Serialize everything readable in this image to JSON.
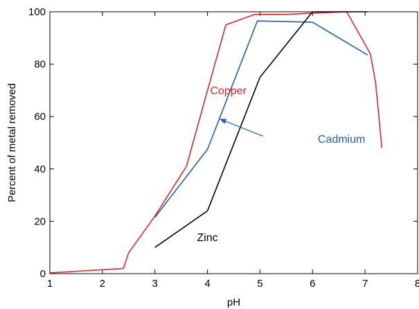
{
  "chart_data": {
    "type": "line",
    "xlabel": "pH",
    "ylabel": "Percent of metal removed",
    "xlim": [
      1,
      8
    ],
    "ylim": [
      0,
      100
    ],
    "xticks": [
      1,
      2,
      3,
      4,
      5,
      6,
      7,
      8
    ],
    "yticks": [
      0,
      20,
      40,
      60,
      80,
      100
    ],
    "grid": false,
    "legend": "none",
    "series": [
      {
        "name": "Copper",
        "color": "#e0262b",
        "points": [
          [
            1.0,
            0.3
          ],
          [
            2.0,
            1.5
          ],
          [
            2.4,
            2.0
          ],
          [
            2.5,
            8.0
          ],
          [
            3.0,
            22.0
          ],
          [
            3.6,
            41.0
          ],
          [
            4.0,
            70.0
          ],
          [
            4.35,
            95.0
          ],
          [
            4.9,
            99.0
          ],
          [
            5.5,
            99.0
          ],
          [
            6.0,
            99.5
          ],
          [
            6.65,
            100.0
          ],
          [
            7.1,
            84.0
          ],
          [
            7.2,
            73.0
          ],
          [
            7.32,
            48.0
          ]
        ]
      },
      {
        "name": "Cadmium",
        "color": "#1f5fae",
        "points": [
          [
            3.0,
            21.5
          ],
          [
            4.0,
            47.5
          ],
          [
            4.95,
            96.5
          ],
          [
            6.0,
            96.0
          ],
          [
            7.05,
            83.5
          ]
        ]
      },
      {
        "name": "Zinc",
        "color": "#000000",
        "points": [
          [
            3.0,
            10.0
          ],
          [
            4.0,
            24.0
          ],
          [
            5.0,
            75.0
          ],
          [
            6.0,
            100.0
          ],
          [
            7.05,
            100.0
          ]
        ]
      }
    ],
    "annotations": [
      {
        "text": "Copper",
        "color": "#e0262b",
        "x": 4.05,
        "y": 68.5,
        "arrow": false
      },
      {
        "text": "Cadmium",
        "color": "#1f5fae",
        "x": 6.1,
        "y": 50.0,
        "arrow": true,
        "arrow_to": [
          4.24,
          59.0
        ],
        "arrow_from": [
          5.06,
          52.5
        ]
      },
      {
        "text": "Zinc",
        "color": "#000000",
        "x": 3.8,
        "y": 12.5,
        "arrow": false
      }
    ]
  }
}
